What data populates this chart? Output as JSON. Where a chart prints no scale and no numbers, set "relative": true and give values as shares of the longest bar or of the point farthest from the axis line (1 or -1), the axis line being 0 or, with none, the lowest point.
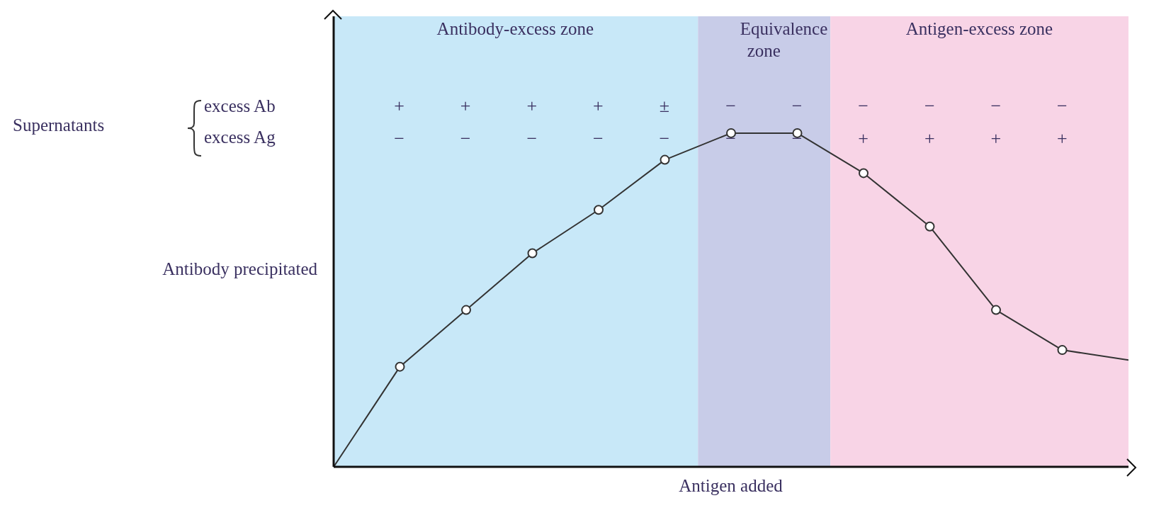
{
  "chart_data": {
    "type": "line",
    "relative": true,
    "xlabel": "Antigen added",
    "ylabel": "Antibody precipitated",
    "tick_labels": false,
    "marker": "circle",
    "categories": [
      null,
      null,
      null,
      null,
      null,
      null,
      null,
      null,
      null,
      null,
      null,
      null,
      null
    ],
    "series": [
      {
        "color": "#333333",
        "values": [
          0,
          0.3,
          0.47,
          0.64,
          0.77,
          0.92,
          1.0,
          1.0,
          0.88,
          0.72,
          0.47,
          0.35,
          0.32
        ]
      }
    ],
    "annotations": [
      "Antibody-excess zone",
      "Equivalence zone",
      "Antigen-excess zone",
      "Supernatants",
      "excess Ab",
      "excess Ag",
      "+",
      "+",
      "+",
      "+",
      "±",
      "−",
      "−",
      "−",
      "−",
      "−",
      "−",
      "−",
      "−",
      "−",
      "−",
      "−",
      "−",
      "−",
      "+",
      "+",
      "+",
      "+"
    ]
  }
}
